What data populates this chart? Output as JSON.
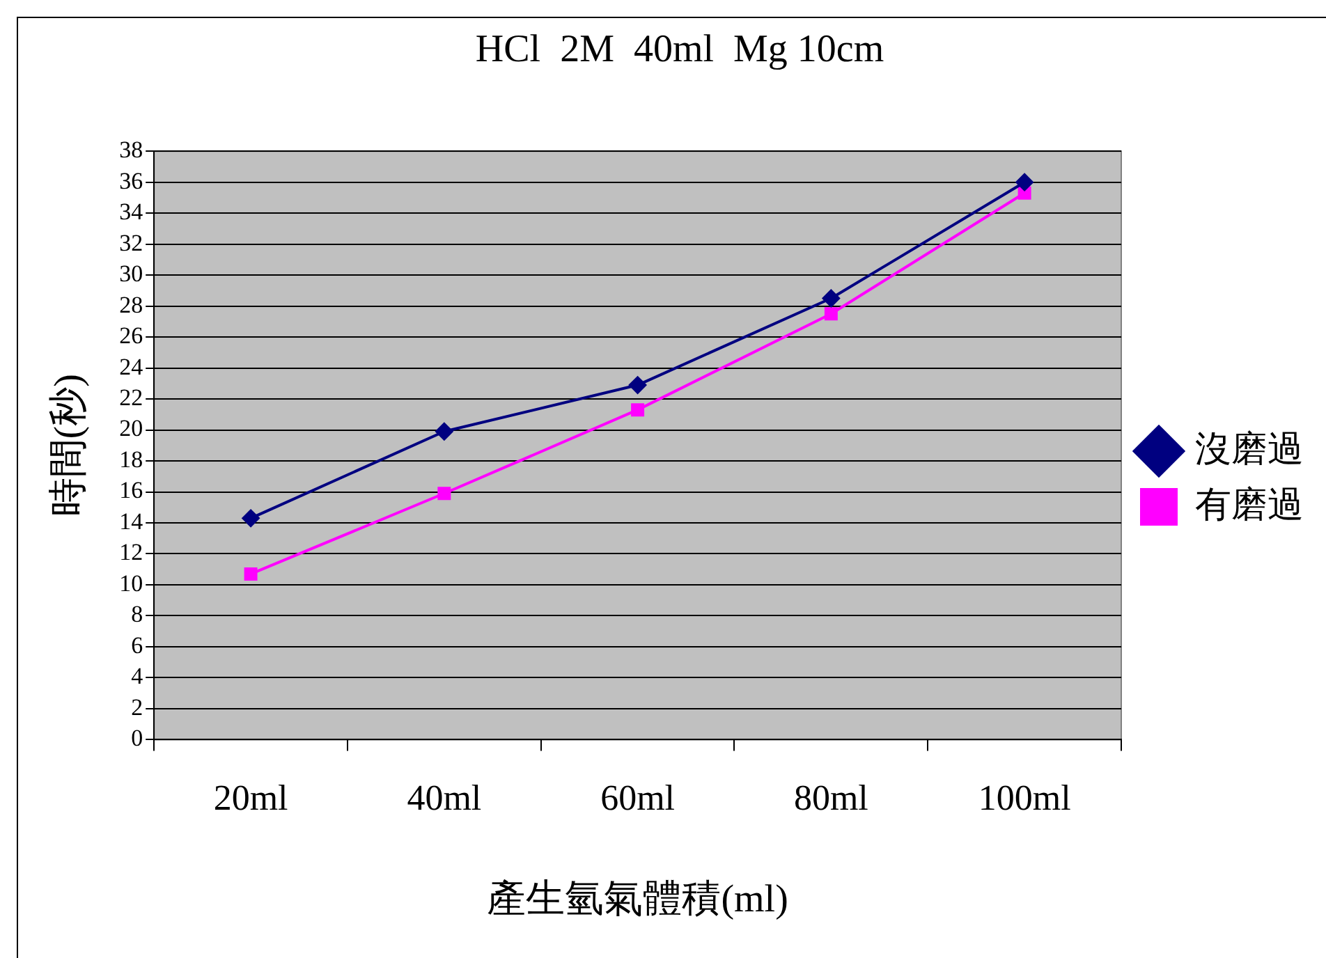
{
  "chart_data": {
    "type": "line",
    "title": "HCl  2M  40ml  Mg 10cm",
    "xlabel": "產生氫氣體積(ml)",
    "ylabel": "時間(秒)",
    "categories": [
      "20ml",
      "40ml",
      "60ml",
      "80ml",
      "100ml"
    ],
    "series": [
      {
        "name": "沒磨過",
        "color": "#000080",
        "marker": "diamond",
        "values": [
          14.3,
          19.9,
          22.9,
          28.5,
          36.0
        ]
      },
      {
        "name": "有磨過",
        "color": "#ff00ff",
        "marker": "square",
        "values": [
          10.7,
          15.9,
          21.3,
          27.5,
          35.3
        ]
      }
    ],
    "ylim": [
      0,
      38
    ],
    "yticks": [
      0,
      2,
      4,
      6,
      8,
      10,
      12,
      14,
      16,
      18,
      20,
      22,
      24,
      26,
      28,
      30,
      32,
      34,
      36,
      38
    ],
    "grid": "y",
    "legend": "right",
    "line_style": "solid"
  }
}
